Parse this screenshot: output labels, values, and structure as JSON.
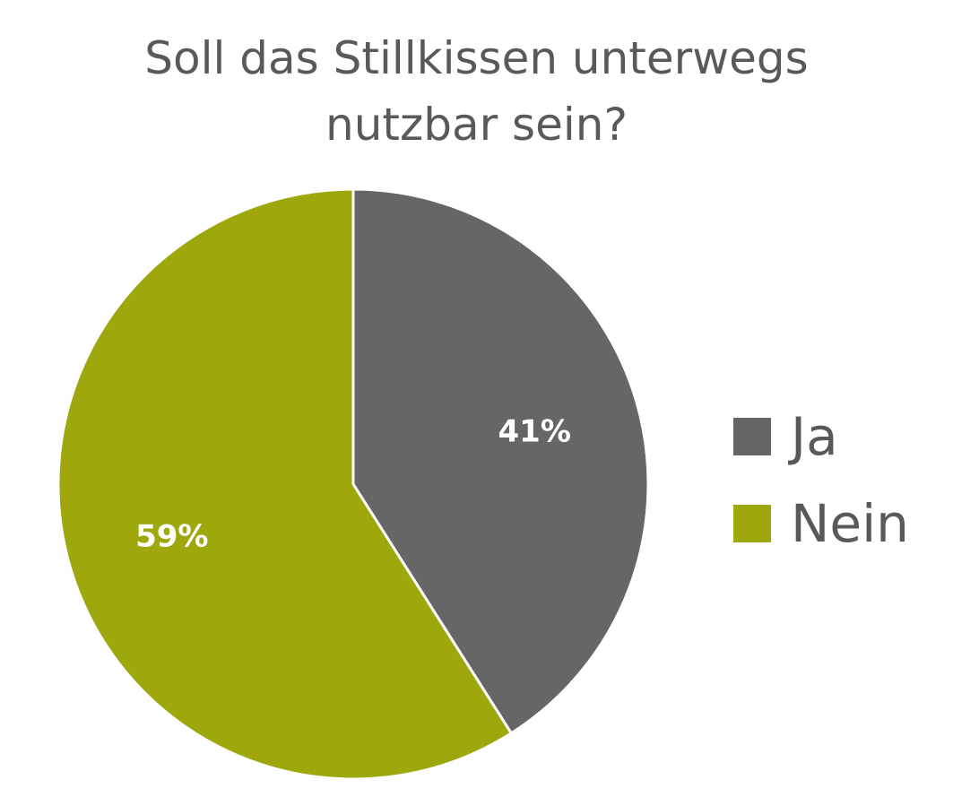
{
  "chart_data": {
    "type": "pie",
    "title_lines": [
      "Soll das Stillkissen unterwegs",
      "nutzbar sein?"
    ],
    "slices": [
      {
        "label": "Ja",
        "value": 41,
        "display": "41%",
        "color": "#666666"
      },
      {
        "label": "Nein",
        "value": 59,
        "display": "59%",
        "color": "#9ea70c"
      }
    ],
    "start_angle_deg": 0,
    "direction": "clockwise",
    "legend_position": "right"
  }
}
